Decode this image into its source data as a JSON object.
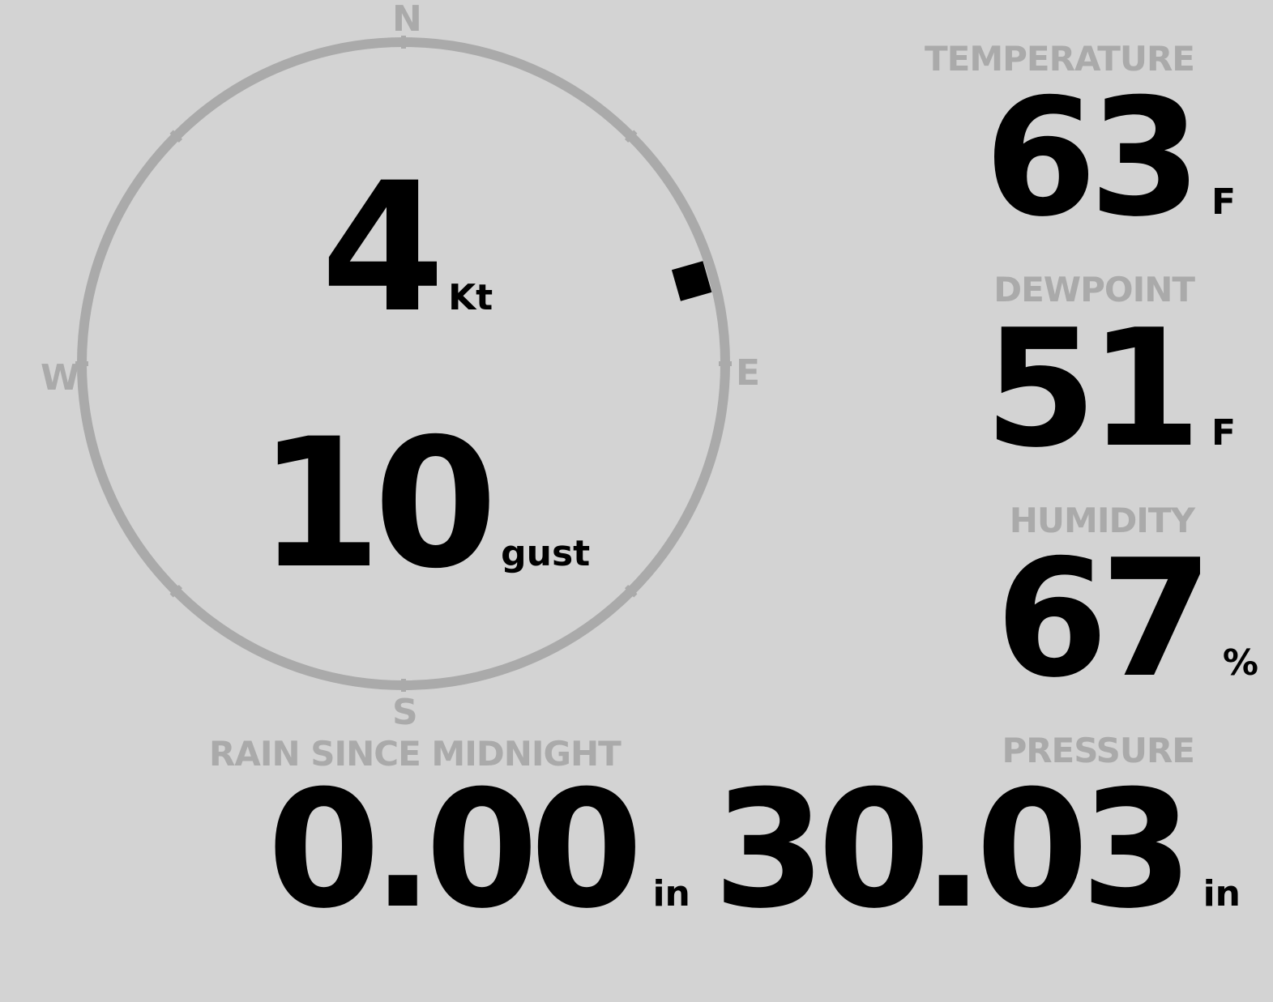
{
  "wind": {
    "speed": "4",
    "speed_unit": "Kt",
    "gust": "10",
    "gust_label": "gust",
    "direction_deg": 74,
    "compass": {
      "n": "N",
      "e": "E",
      "s": "S",
      "w": "W"
    }
  },
  "temperature": {
    "label": "TEMPERATURE",
    "value": "63",
    "unit": "F"
  },
  "dewpoint": {
    "label": "DEWPOINT",
    "value": "51",
    "unit": "F"
  },
  "humidity": {
    "label": "HUMIDITY",
    "value": "67",
    "unit": "%"
  },
  "rain": {
    "label": "RAIN SINCE MIDNIGHT",
    "value": "0.00",
    "unit": "in"
  },
  "pressure": {
    "label": "PRESSURE",
    "value": "30.03",
    "unit": "in"
  },
  "colors": {
    "background": "#d3d3d3",
    "label": "#aaaaaa",
    "value": "#000000"
  }
}
